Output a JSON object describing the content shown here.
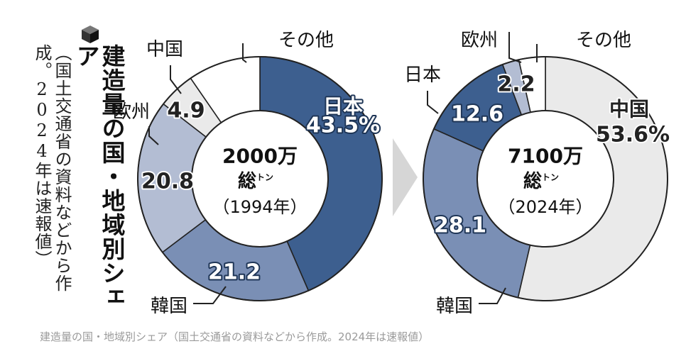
{
  "title": "建造量の国・地域別シェア",
  "note": "（国土交通省の資料などから作成。2024年は速報値）",
  "caption": "建造量の国・地域別シェア（国土交通省の資料などから作成。2024年は速報値）",
  "icons": {
    "title_mark": "cube-icon",
    "arrow": "chevron-right-icon"
  },
  "colors": {
    "japan": "#3d5f8f",
    "korea": "#7a8fb5",
    "europe": "#b3bdd3",
    "china": "#eaeaea",
    "other": "#ffffff",
    "arrow": "#d6d6d6"
  },
  "chart_data": [
    {
      "type": "pie",
      "year_label": "（1994年）",
      "total_value": "2000万",
      "total_unit_main": "総",
      "total_unit_small": "トン",
      "slices": [
        {
          "name": "日本",
          "value": 43.5,
          "label": "43.5%",
          "color_key": "japan"
        },
        {
          "name": "韓国",
          "value": 21.2,
          "label": "21.2",
          "color_key": "korea"
        },
        {
          "name": "欧州",
          "value": 20.8,
          "label": "20.8",
          "color_key": "europe"
        },
        {
          "name": "中国",
          "value": 4.9,
          "label": "4.9",
          "color_key": "china"
        },
        {
          "name": "その他",
          "value": 9.6,
          "label": "",
          "color_key": "other"
        }
      ]
    },
    {
      "type": "pie",
      "year_label": "（2024年）",
      "total_value": "7100万",
      "total_unit_main": "総",
      "total_unit_small": "トン",
      "slices": [
        {
          "name": "中国",
          "value": 53.6,
          "label": "53.6%",
          "color_key": "china"
        },
        {
          "name": "韓国",
          "value": 28.1,
          "label": "28.1",
          "color_key": "korea"
        },
        {
          "name": "日本",
          "value": 12.6,
          "label": "12.6",
          "color_key": "japan"
        },
        {
          "name": "欧州",
          "value": 2.2,
          "label": "2.2",
          "color_key": "europe"
        },
        {
          "name": "その他",
          "value": 3.5,
          "label": "",
          "color_key": "other"
        }
      ]
    }
  ]
}
